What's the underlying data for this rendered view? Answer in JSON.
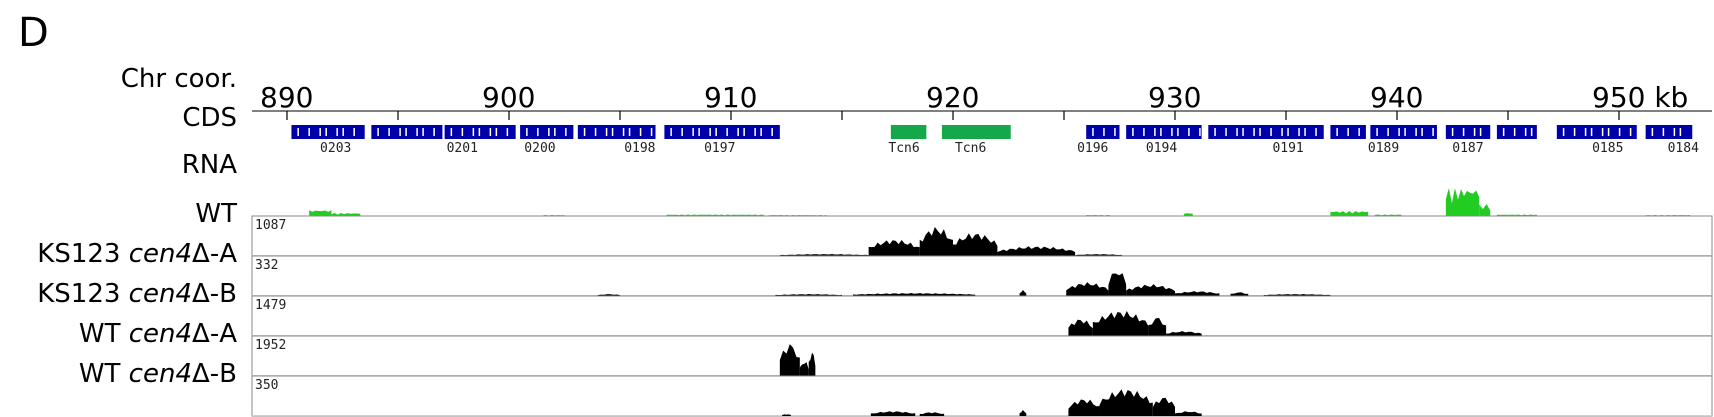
{
  "panel_label": "D",
  "labels": {
    "chr": "Chr coor.",
    "cds": "CDS",
    "rna": "RNA",
    "wt": "WT",
    "ks_a_prefix": "KS123 ",
    "ks_a_italic": "cen4",
    "ks_a_suffix": "Δ-A",
    "ks_b_prefix": "KS123 ",
    "ks_b_italic": "cen4",
    "ks_b_suffix": "Δ-B",
    "wt_a_prefix": "WT ",
    "wt_a_italic": "cen4",
    "wt_a_suffix": "Δ-A",
    "wt_b_prefix": "WT ",
    "wt_b_italic": "cen4",
    "wt_b_suffix": "Δ-B"
  },
  "axis": {
    "min": 887,
    "max": 953,
    "ticks": [
      890,
      895,
      900,
      905,
      910,
      915,
      920,
      925,
      930,
      935,
      940,
      945,
      950
    ],
    "tick_labels": [
      {
        "value": 890,
        "label": "890"
      },
      {
        "value": 900,
        "label": "900"
      },
      {
        "value": 910,
        "label": "910"
      },
      {
        "value": 920,
        "label": "920"
      },
      {
        "value": 930,
        "label": "930"
      },
      {
        "value": 940,
        "label": "940"
      },
      {
        "value": 950,
        "label": "950 kb"
      }
    ]
  },
  "genes": [
    {
      "label": "0203",
      "pos": 892.3
    },
    {
      "label": "0201",
      "pos": 898.0
    },
    {
      "label": "0200",
      "pos": 901.5
    },
    {
      "label": "0198",
      "pos": 906.0
    },
    {
      "label": "0197",
      "pos": 909.6
    },
    {
      "label": "Tcn6",
      "pos": 917.9
    },
    {
      "label": "Tcn6",
      "pos": 920.9
    },
    {
      "label": "0196",
      "pos": 926.4
    },
    {
      "label": "0194",
      "pos": 929.5
    },
    {
      "label": "0191",
      "pos": 935.2
    },
    {
      "label": "0189",
      "pos": 939.5
    },
    {
      "label": "0187",
      "pos": 943.3
    },
    {
      "label": "0185",
      "pos": 949.6
    },
    {
      "label": "0184",
      "pos": 953.0
    }
  ],
  "colors": {
    "cds": "#0000aa",
    "transposon": "#14a84a",
    "rna": "#22cc22",
    "coverage": "#000000"
  },
  "tracks": [
    {
      "id": "wt",
      "max": "1087"
    },
    {
      "id": "ks_a",
      "max": "332"
    },
    {
      "id": "ks_b",
      "max": "1479"
    },
    {
      "id": "wt_a",
      "max": "1952"
    },
    {
      "id": "wt_b",
      "max": "350"
    }
  ]
}
